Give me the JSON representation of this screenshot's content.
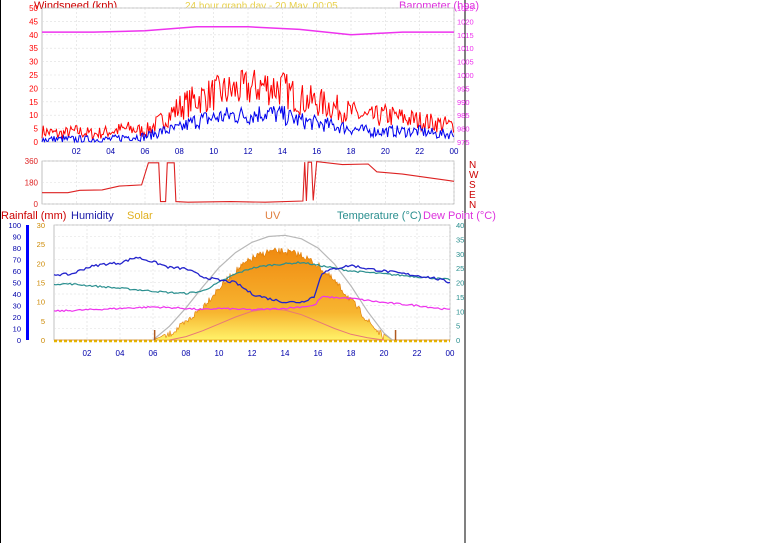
{
  "header": {
    "windspeed_label": "Windspeed (kph)",
    "title": "24 hour graph day - 20 May, 00:05",
    "barometer_label": "Barometer (hpa)"
  },
  "bottom_labels": {
    "rainfall": "Rainfall (mm)",
    "humidity": "Humidity",
    "solar": "Solar",
    "uv": "UV",
    "temperature": "Temperature (°C)",
    "dewpoint": "Dew Point (°C)"
  },
  "compass": [
    "N",
    "W",
    "S",
    "E",
    "N"
  ],
  "colors": {
    "wind_gust": "#ff0000",
    "wind_avg": "#0000ee",
    "barometer": "#ee33ee",
    "direction": "#dd2222",
    "humidity": "#2222cc",
    "temperature": "#2a8f8f",
    "dewpoint": "#ee33ee",
    "solar": "#f7a11a",
    "rain_axis": "#0000ff",
    "tick_text": "#0000aa"
  },
  "chart_data": [
    {
      "type": "line",
      "name": "wind-and-barometer",
      "x_ticks": [
        "02",
        "04",
        "06",
        "08",
        "10",
        "12",
        "14",
        "16",
        "18",
        "20",
        "22",
        "00"
      ],
      "y_left_ticks": [
        "0",
        "5",
        "10",
        "15",
        "20",
        "25",
        "30",
        "35",
        "40",
        "45",
        "50"
      ],
      "y_right_ticks": [
        "975",
        "980",
        "985",
        "990",
        "995",
        "1000",
        "1005",
        "1010",
        "1015",
        "1020",
        "1025"
      ],
      "ylim_left": [
        0,
        50
      ],
      "ylim_right": [
        975,
        1025
      ],
      "xlim_hours": [
        0,
        24
      ],
      "grid": true,
      "series": [
        {
          "key": "gust",
          "points": [
            [
              0,
              4
            ],
            [
              1,
              3
            ],
            [
              2,
              4
            ],
            [
              3,
              3
            ],
            [
              4,
              4
            ],
            [
              5,
              5
            ],
            [
              6,
              4
            ],
            [
              7,
              8
            ],
            [
              8,
              13
            ],
            [
              9,
              16
            ],
            [
              10,
              18
            ],
            [
              11,
              19
            ],
            [
              12,
              20
            ],
            [
              13,
              21
            ],
            [
              14,
              20
            ],
            [
              15,
              16
            ],
            [
              16,
              15
            ],
            [
              17,
              13
            ],
            [
              18,
              11
            ],
            [
              19,
              9
            ],
            [
              20,
              10
            ],
            [
              21,
              9
            ],
            [
              22,
              8
            ],
            [
              23,
              7
            ],
            [
              24,
              6
            ]
          ]
        },
        {
          "key": "avg",
          "points": [
            [
              0,
              1
            ],
            [
              1,
              1
            ],
            [
              2,
              1
            ],
            [
              3,
              1
            ],
            [
              4,
              1
            ],
            [
              5,
              2
            ],
            [
              6,
              2
            ],
            [
              7,
              4
            ],
            [
              8,
              5
            ],
            [
              9,
              8
            ],
            [
              10,
              9
            ],
            [
              11,
              10
            ],
            [
              12,
              10
            ],
            [
              13,
              11
            ],
            [
              14,
              10
            ],
            [
              15,
              8
            ],
            [
              16,
              7
            ],
            [
              17,
              6
            ],
            [
              18,
              5
            ],
            [
              19,
              4
            ],
            [
              20,
              4
            ],
            [
              21,
              4
            ],
            [
              22,
              4
            ],
            [
              23,
              3
            ],
            [
              24,
              3
            ]
          ]
        },
        {
          "key": "barometer",
          "points": [
            [
              0,
              1016
            ],
            [
              3,
              1016
            ],
            [
              6,
              1016.5
            ],
            [
              9,
              1018
            ],
            [
              12,
              1018
            ],
            [
              15,
              1017
            ],
            [
              18,
              1015
            ],
            [
              21,
              1016
            ],
            [
              24,
              1016
            ]
          ]
        }
      ]
    },
    {
      "type": "line",
      "name": "wind-direction",
      "y_ticks": [
        "0",
        "180",
        "360"
      ],
      "ylim": [
        0,
        360
      ],
      "xlim_hours": [
        0,
        24
      ],
      "points": [
        [
          0,
          95
        ],
        [
          1.5,
          95
        ],
        [
          2.2,
          115
        ],
        [
          3.5,
          118
        ],
        [
          4.5,
          150
        ],
        [
          5.8,
          160
        ],
        [
          6.2,
          345
        ],
        [
          6.8,
          345
        ],
        [
          6.9,
          20
        ],
        [
          7.2,
          20
        ],
        [
          7.3,
          345
        ],
        [
          7.7,
          345
        ],
        [
          7.8,
          20
        ],
        [
          8.5,
          15
        ],
        [
          11,
          20
        ],
        [
          13,
          15
        ],
        [
          15.2,
          25
        ],
        [
          15.3,
          350
        ],
        [
          15.4,
          25
        ],
        [
          15.5,
          350
        ],
        [
          15.7,
          350
        ],
        [
          15.8,
          30
        ],
        [
          16,
          355
        ],
        [
          17.5,
          330
        ],
        [
          19,
          335
        ],
        [
          19.5,
          270
        ],
        [
          21,
          250
        ],
        [
          22.5,
          220
        ],
        [
          23.5,
          200
        ],
        [
          24,
          190
        ]
      ]
    },
    {
      "type": "line",
      "name": "environment",
      "x_ticks": [
        "02",
        "04",
        "06",
        "08",
        "10",
        "12",
        "14",
        "16",
        "18",
        "20",
        "22",
        "00"
      ],
      "y_left_percent_ticks": [
        "0",
        "10",
        "20",
        "30",
        "40",
        "50",
        "60",
        "70",
        "80",
        "90",
        "100"
      ],
      "y_left_inner_ticks": [
        "0",
        "5",
        "10",
        "15",
        "20",
        "25",
        "30"
      ],
      "y_right_ticks": [
        "0",
        "5",
        "10",
        "15",
        "20",
        "25",
        "30",
        "35",
        "40"
      ],
      "xlim_hours": [
        0,
        24
      ],
      "series": [
        {
          "key": "humidity",
          "axis": "percent",
          "points": [
            [
              0,
              57
            ],
            [
              1,
              57
            ],
            [
              2,
              63
            ],
            [
              3,
              66
            ],
            [
              4,
              67
            ],
            [
              5,
              72
            ],
            [
              6,
              68
            ],
            [
              7,
              63
            ],
            [
              8,
              62
            ],
            [
              9,
              55
            ],
            [
              10,
              52
            ],
            [
              11,
              50
            ],
            [
              12,
              40
            ],
            [
              13,
              36
            ],
            [
              14,
              33
            ],
            [
              15,
              33
            ],
            [
              15.8,
              38
            ],
            [
              16.2,
              58
            ],
            [
              17,
              62
            ],
            [
              18,
              65
            ],
            [
              19,
              62
            ],
            [
              20,
              60
            ],
            [
              21,
              58
            ],
            [
              22,
              56
            ],
            [
              23,
              54
            ],
            [
              24,
              50
            ]
          ]
        },
        {
          "key": "temperature",
          "axis": "right",
          "points": [
            [
              0,
              19.5
            ],
            [
              1,
              19.5
            ],
            [
              2,
              19
            ],
            [
              3,
              18.5
            ],
            [
              4,
              18
            ],
            [
              5,
              17.5
            ],
            [
              6,
              17
            ],
            [
              7,
              16.5
            ],
            [
              8,
              16.2
            ],
            [
              9,
              17
            ],
            [
              10,
              20
            ],
            [
              11,
              23
            ],
            [
              12,
              25
            ],
            [
              13,
              26
            ],
            [
              14,
              26.5
            ],
            [
              15,
              27
            ],
            [
              16,
              26
            ],
            [
              17,
              25
            ],
            [
              18,
              24
            ],
            [
              19,
              23.5
            ],
            [
              20,
              23
            ],
            [
              21,
              22.5
            ],
            [
              22,
              22
            ],
            [
              23,
              21.5
            ],
            [
              24,
              21
            ]
          ]
        },
        {
          "key": "dewpoint",
          "axis": "right",
          "points": [
            [
              0,
              10
            ],
            [
              2,
              10.5
            ],
            [
              4,
              11
            ],
            [
              6,
              11.5
            ],
            [
              8,
              11
            ],
            [
              9,
              10.5
            ],
            [
              10,
              11
            ],
            [
              12,
              10.5
            ],
            [
              14,
              11
            ],
            [
              15.8,
              12
            ],
            [
              16.2,
              15
            ],
            [
              18,
              14.5
            ],
            [
              20,
              13
            ],
            [
              22,
              12
            ],
            [
              24,
              10.5
            ]
          ]
        },
        {
          "key": "solar",
          "axis": "hidden",
          "max": 100,
          "points": [
            [
              0,
              0
            ],
            [
              6,
              0
            ],
            [
              6.5,
              3
            ],
            [
              7,
              8
            ],
            [
              8,
              18
            ],
            [
              9,
              32
            ],
            [
              10,
              48
            ],
            [
              11,
              63
            ],
            [
              12,
              74
            ],
            [
              13,
              80
            ],
            [
              14,
              80
            ],
            [
              15,
              77
            ],
            [
              16,
              68
            ],
            [
              17,
              54
            ],
            [
              18,
              38
            ],
            [
              19,
              20
            ],
            [
              20,
              5
            ],
            [
              20.5,
              0
            ],
            [
              24,
              0
            ]
          ]
        },
        {
          "key": "solar_theoretical",
          "axis": "hidden",
          "max": 100,
          "points": [
            [
              6,
              0
            ],
            [
              7,
              12
            ],
            [
              8,
              28
            ],
            [
              9,
              46
            ],
            [
              10,
              63
            ],
            [
              11,
              76
            ],
            [
              12,
              85
            ],
            [
              13,
              90
            ],
            [
              14,
              91
            ],
            [
              15,
              88
            ],
            [
              16,
              80
            ],
            [
              17,
              66
            ],
            [
              18,
              47
            ],
            [
              19,
              25
            ],
            [
              20,
              6
            ],
            [
              20.5,
              0
            ]
          ]
        },
        {
          "key": "uv",
          "axis": "hidden",
          "max": 100,
          "points": [
            [
              7,
              0
            ],
            [
              8,
              3
            ],
            [
              9,
              8
            ],
            [
              10,
              14
            ],
            [
              11,
              20
            ],
            [
              12,
              25
            ],
            [
              13,
              27
            ],
            [
              14,
              26
            ],
            [
              15,
              22
            ],
            [
              16,
              16
            ],
            [
              17,
              10
            ],
            [
              18,
              5
            ],
            [
              19,
              2
            ],
            [
              20,
              0
            ]
          ]
        }
      ],
      "markers_hours": [
        6.1,
        20.7
      ]
    }
  ]
}
